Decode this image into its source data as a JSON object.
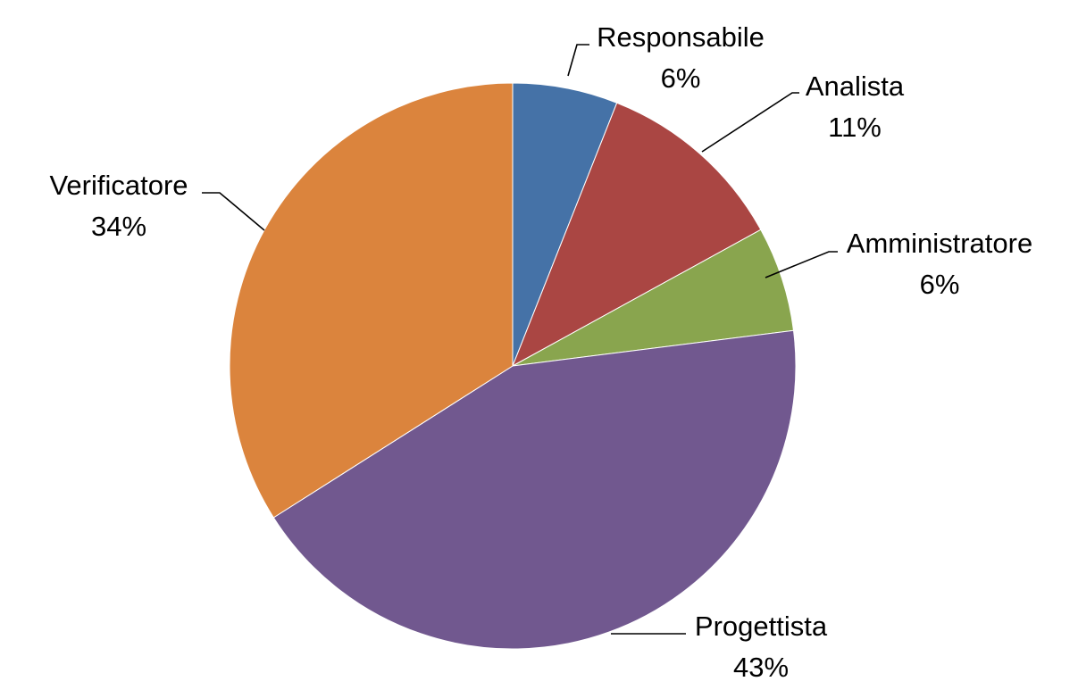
{
  "chart_data": {
    "type": "pie",
    "title": "",
    "slices": [
      {
        "label": "Responsabile",
        "percent_label": "6%",
        "value": 6,
        "color": "#4572A7"
      },
      {
        "label": "Analista",
        "percent_label": "11%",
        "value": 11,
        "color": "#AA4643"
      },
      {
        "label": "Amministratore",
        "percent_label": "6%",
        "value": 6,
        "color": "#89A54E"
      },
      {
        "label": "Progettista",
        "percent_label": "43%",
        "value": 43,
        "color": "#71588F"
      },
      {
        "label": "Verificatore",
        "percent_label": "34%",
        "value": 34,
        "color": "#DB843D"
      }
    ],
    "start_angle_deg": 0,
    "direction": "clockwise",
    "legend": "none"
  }
}
